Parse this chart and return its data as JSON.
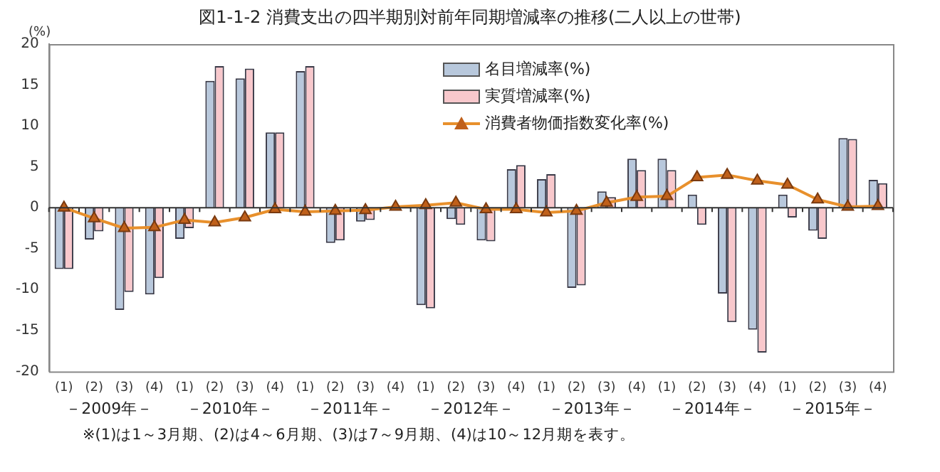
{
  "chart_data": {
    "type": "bar",
    "title": "図1-1-2 消費支出の四半期別対前年同期増減率の推移(二人以上の世帯)",
    "ylabel": "(%)",
    "categories": [
      "(1)",
      "(2)",
      "(3)",
      "(4)",
      "(1)",
      "(2)",
      "(3)",
      "(4)",
      "(1)",
      "(2)",
      "(3)",
      "(4)",
      "(1)",
      "(2)",
      "(3)",
      "(4)",
      "(1)",
      "(2)",
      "(3)",
      "(4)",
      "(1)",
      "(2)",
      "(3)",
      "(4)",
      "(1)",
      "(2)",
      "(3)",
      "(4)"
    ],
    "series": [
      {
        "name": "名目増減率(%)",
        "color": "#b8c8dc",
        "values": [
          -7.5,
          -3.9,
          -12.5,
          -10.6,
          -3.8,
          15.5,
          15.8,
          9.2,
          16.7,
          -4.3,
          -1.7,
          0.1,
          -11.9,
          -1.4,
          -4.0,
          4.7,
          3.5,
          -9.8,
          2.0,
          6.0,
          6.0,
          1.6,
          -10.5,
          -14.9,
          1.6,
          -2.8,
          8.5,
          3.4
        ]
      },
      {
        "name": "実質増減率(%)",
        "color": "#f8c8cc",
        "values": [
          -7.5,
          -2.9,
          -10.3,
          -8.6,
          -2.5,
          17.3,
          17.0,
          9.2,
          17.3,
          -4.0,
          -1.5,
          0.2,
          -12.3,
          -2.1,
          -4.1,
          5.2,
          4.1,
          -9.5,
          1.3,
          4.6,
          4.6,
          -2.1,
          -14.0,
          -17.7,
          -1.2,
          -3.8,
          8.4,
          3.0
        ]
      },
      {
        "name": "消費者物価指数変化率(%)",
        "type": "line",
        "color": "#e8902c",
        "marker": "triangle",
        "values": [
          0.0,
          -1.3,
          -2.5,
          -2.4,
          -1.5,
          -1.8,
          -1.2,
          -0.2,
          -0.5,
          -0.4,
          -0.3,
          0.1,
          0.3,
          0.6,
          -0.2,
          -0.2,
          -0.6,
          -0.4,
          0.6,
          1.3,
          1.4,
          3.7,
          4.0,
          3.3,
          2.8,
          1.0,
          0.1,
          0.2
        ]
      }
    ],
    "ylim": [
      -20,
      20
    ],
    "yticks": [
      -20,
      -15,
      -10,
      -5,
      0,
      5,
      10,
      15,
      20
    ],
    "legend": "top",
    "annotations": [
      "－2009年－",
      "－2010年－",
      "－2011年－",
      "－2012年－",
      "－2013年－",
      "－2014年－",
      "－2015年－",
      "※(1)は1～3月期、(2)は4～6月期、(3)は7～9月期、(4)は10～12月期を表す。"
    ]
  }
}
